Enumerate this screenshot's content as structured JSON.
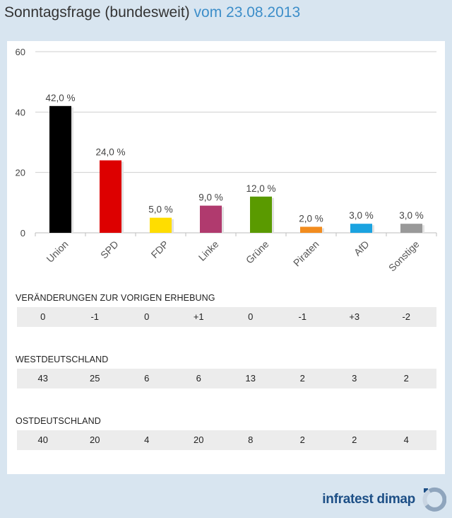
{
  "header": {
    "title": "Sonntagsfrage (bundesweit)",
    "date": "vom 23.08.2013"
  },
  "chart_data": {
    "type": "bar",
    "categories": [
      "Union",
      "SPD",
      "FDP",
      "Linke",
      "Grüne",
      "Piraten",
      "AfD",
      "Sonstige"
    ],
    "values": [
      42.0,
      24.0,
      5.0,
      9.0,
      12.0,
      2.0,
      3.0,
      3.0
    ],
    "value_labels": [
      "42,0 %",
      "24,0 %",
      "5,0 %",
      "9,0 %",
      "12,0 %",
      "2,0 %",
      "3,0 %",
      "3,0 %"
    ],
    "colors": [
      "#000000",
      "#dd0000",
      "#ffdd00",
      "#b03a6e",
      "#5a9a00",
      "#f28c1e",
      "#1aa3e0",
      "#999999"
    ],
    "ylim": [
      0,
      60
    ],
    "yticks": [
      0,
      20,
      40,
      60
    ],
    "grid": true
  },
  "tables": [
    {
      "label": "VERÄNDERUNGEN ZUR VORIGEN ERHEBUNG",
      "values": [
        "0",
        "-1",
        "0",
        "+1",
        "0",
        "-1",
        "+3",
        "-2"
      ]
    },
    {
      "label": "WESTDEUTSCHLAND",
      "values": [
        "43",
        "25",
        "6",
        "6",
        "13",
        "2",
        "3",
        "2"
      ]
    },
    {
      "label": "OSTDEUTSCHLAND",
      "values": [
        "40",
        "20",
        "4",
        "20",
        "8",
        "2",
        "2",
        "4"
      ]
    }
  ],
  "footer": {
    "logo_text": "infratest dimap",
    "logo_icon": "infratest-dimap-logo-icon"
  }
}
